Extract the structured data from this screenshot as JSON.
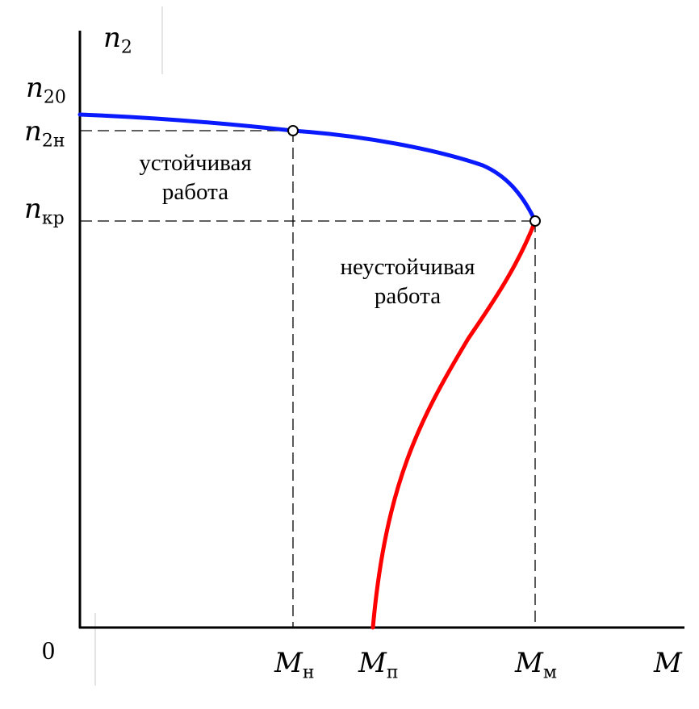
{
  "diagram": {
    "axes": {
      "y_label_main": "n",
      "y_label_sub": "2",
      "x_label": "M",
      "origin": "0"
    },
    "y_ticks": [
      {
        "main": "n",
        "sub": "20"
      },
      {
        "main": "n",
        "sub": "2н"
      },
      {
        "main": "n",
        "sub": "кр"
      }
    ],
    "x_ticks": [
      {
        "main": "M",
        "sub": "н"
      },
      {
        "main": "M",
        "sub": "п"
      },
      {
        "main": "M",
        "sub": "м"
      }
    ],
    "regions": {
      "stable_line1": "устойчивая",
      "stable_line2": "работа",
      "unstable_line1": "неустойчивая",
      "unstable_line2": "работа"
    },
    "colors": {
      "stable_curve": "#0a1aff",
      "unstable_curve": "#ff0000",
      "axis": "#000000"
    }
  }
}
